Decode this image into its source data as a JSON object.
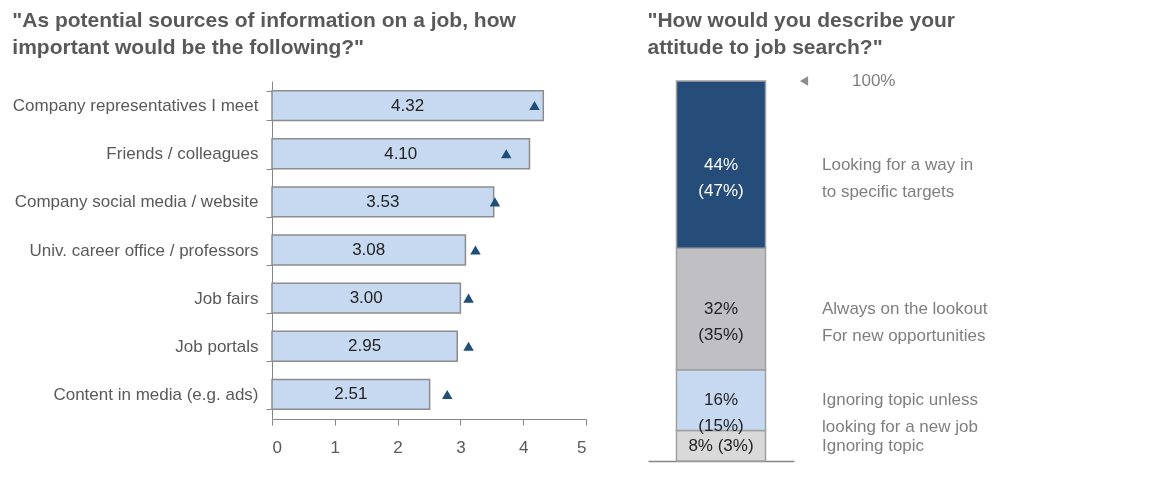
{
  "chart_data": [
    {
      "type": "bar",
      "orientation": "horizontal",
      "title": "\"As potential sources of information on a job, how important would be the following?\"",
      "categories": [
        "Company representatives I meet",
        "Friends / colleagues",
        "Company social media / website",
        "Univ. career office / professors",
        "Job fairs",
        "Job portals",
        "Content in media (e.g. ads)"
      ],
      "series": [
        {
          "type": "bar",
          "color": "#c6d9f0",
          "values": [
            4.32,
            4.1,
            3.53,
            3.08,
            3.0,
            2.95,
            2.51
          ],
          "value_labels": [
            "4.32",
            "4.10",
            "3.53",
            "3.08",
            "3.00",
            "2.95",
            "2.51"
          ]
        },
        {
          "type": "scatter",
          "color": "#1f4e79",
          "marker": "triangle",
          "x": [
            "Company representatives I meet",
            "Friends / colleagues",
            "Company social media / website",
            "Univ. career office / professors",
            "Job fairs",
            "Job portals",
            "Content in media (e.g. ads)"
          ],
          "values": [
            4.18,
            3.73,
            3.55,
            3.24,
            3.13,
            3.13,
            2.79
          ]
        }
      ],
      "xlim": [
        0,
        5
      ],
      "xticks": [
        0,
        1,
        2,
        3,
        4,
        5
      ]
    },
    {
      "type": "bar",
      "stacked": true,
      "title": "\"How would you describe your attitude to job search?\"",
      "categories": [
        null
      ],
      "series": [
        {
          "name": "Ignoring topic",
          "color": "#d9d9d9",
          "values": [
            8
          ],
          "value_labels": [
            "8% (3%)"
          ]
        },
        {
          "name": "Ignoring topic unless looking for a new job",
          "color": "#c6d9f0",
          "values": [
            16
          ],
          "value_labels": [
            "16% (15%)"
          ]
        },
        {
          "name": "Always on the lookout For new opportunities",
          "color": "#bfbfc4",
          "values": [
            32
          ],
          "value_labels": [
            "32% (35%)"
          ]
        },
        {
          "name": "Looking for a way in to specific targets",
          "color": "#264d7a",
          "values": [
            44
          ],
          "value_labels": [
            "44% (47%)"
          ]
        }
      ],
      "ylim": [
        0,
        100
      ],
      "annotations": [
        "100%"
      ]
    }
  ]
}
